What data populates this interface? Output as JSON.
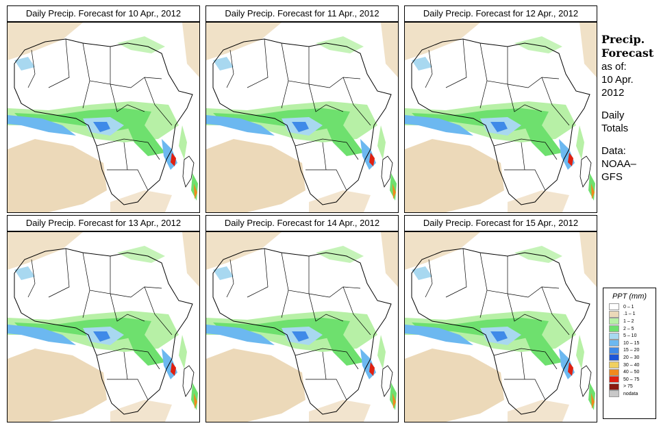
{
  "panels": [
    {
      "title": "Daily Precip. Forecast for  10 Apr., 2012"
    },
    {
      "title": "Daily Precip. Forecast for  11 Apr., 2012"
    },
    {
      "title": "Daily Precip. Forecast for  12 Apr., 2012"
    },
    {
      "title": "Daily Precip. Forecast for  13 Apr., 2012"
    },
    {
      "title": "Daily Precip. Forecast for  14 Apr., 2012"
    },
    {
      "title": "Daily Precip. Forecast for  15 Apr., 2012"
    }
  ],
  "sidebar": {
    "title_line1": "Precip.",
    "title_line2": "Forecast",
    "asof_label": "as of:",
    "asof_date_line1": "10 Apr.",
    "asof_date_line2": "2012",
    "totals_line1": "Daily",
    "totals_line2": "Totals",
    "data_line1": "Data:",
    "data_line2": "NOAA–",
    "data_line3": "GFS"
  },
  "legend": {
    "title": "PPT (mm)",
    "items": [
      {
        "label": "0 – 1",
        "color": "#ffffff"
      },
      {
        "label": ".1 – 1",
        "color": "#ecd9b9"
      },
      {
        "label": "1 – 2",
        "color": "#b7f0a6"
      },
      {
        "label": "2 – 5",
        "color": "#6ee06e"
      },
      {
        "label": "5 – 10",
        "color": "#a8d8f0"
      },
      {
        "label": "10 – 15",
        "color": "#6cb8f0"
      },
      {
        "label": "15 – 20",
        "color": "#3f8ae8"
      },
      {
        "label": "20 – 30",
        "color": "#1d55d8"
      },
      {
        "label": "30 – 40",
        "color": "#f0d060"
      },
      {
        "label": "40 – 50",
        "color": "#f08a1e"
      },
      {
        "label": "50 – 75",
        "color": "#e02010"
      },
      {
        "label": "> 75",
        "color": "#8a1a10"
      },
      {
        "label": "nodata",
        "color": "#c8c8c8"
      }
    ]
  }
}
